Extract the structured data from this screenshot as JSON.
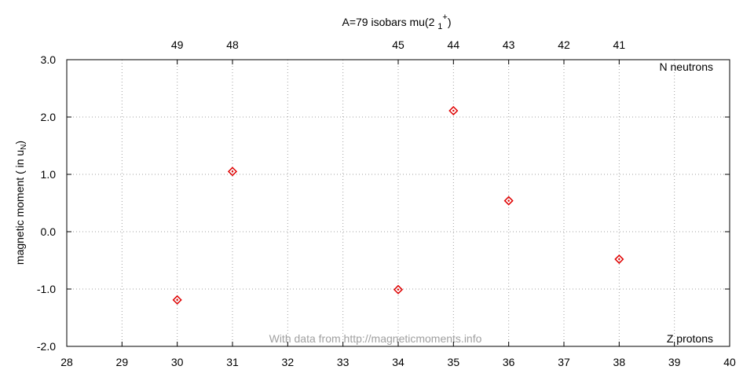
{
  "chart_data": {
    "type": "scatter",
    "title": {
      "text": "A=79 isobars mu(2 ",
      "sub": "1",
      "sup": "+",
      "end": ")"
    },
    "y_label": {
      "text": "magnetic moment ( in u",
      "sub": "N",
      "end": ")"
    },
    "annotations": {
      "top_right": "N neutrons",
      "bottom_right": "Z protons",
      "credit": "With data from http://magneticmoments.info"
    },
    "x": [
      30,
      31,
      34,
      35,
      36,
      38
    ],
    "series": [
      {
        "name": "mu",
        "color": "#e00000",
        "values": [
          -1.19,
          1.05,
          -1.01,
          2.11,
          0.54,
          -0.48
        ]
      }
    ],
    "xlim": [
      28,
      40
    ],
    "xticks": [
      28,
      29,
      30,
      31,
      32,
      33,
      34,
      35,
      36,
      37,
      38,
      39,
      40
    ],
    "ylim": [
      -2,
      3
    ],
    "yticks": [
      {
        "value": -2,
        "label": "-2.0"
      },
      {
        "value": -1,
        "label": "-1.0"
      },
      {
        "value": 0,
        "label": "0.0"
      },
      {
        "value": 1,
        "label": "1.0"
      },
      {
        "value": 2,
        "label": "2.0"
      },
      {
        "value": 3,
        "label": "3.0"
      }
    ],
    "x2ticks": [
      {
        "value": 30,
        "label": "49"
      },
      {
        "value": 31,
        "label": "48"
      },
      {
        "value": 34,
        "label": "45"
      },
      {
        "value": 35,
        "label": "44"
      },
      {
        "value": 36,
        "label": "43"
      },
      {
        "value": 37,
        "label": "42"
      },
      {
        "value": 38,
        "label": "41"
      }
    ],
    "grid": true
  }
}
